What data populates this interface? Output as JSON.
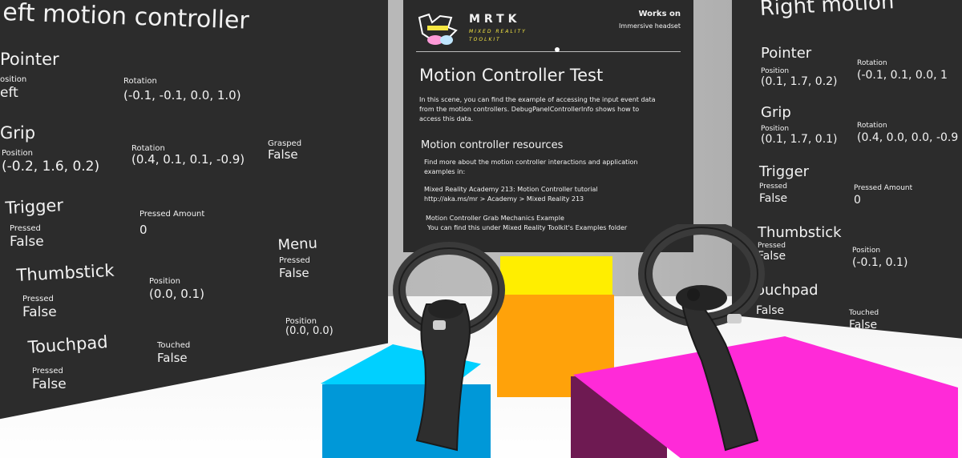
{
  "left_panel": {
    "title": "eft motion controller",
    "pointer": {
      "header": "Pointer",
      "position_label": "osition",
      "position_value": "eft",
      "rotation_label": "Rotation",
      "rotation_value": "(-0.1, -0.1, 0.0, 1.0)"
    },
    "grip": {
      "header": "Grip",
      "position_label": "Position",
      "position_value": "(-0.2, 1.6, 0.2)",
      "rotation_label": "Rotation",
      "rotation_value": "(0.4, 0.1, 0.1, -0.9)",
      "grasped_label": "Grasped",
      "grasped_value": "False"
    },
    "trigger": {
      "header": "Trigger",
      "pressed_label": "Pressed",
      "pressed_value": "False",
      "amount_label": "Pressed Amount",
      "amount_value": "0"
    },
    "menu": {
      "header": "Menu",
      "pressed_label": "Pressed",
      "pressed_value": "False"
    },
    "thumbstick": {
      "header": "Thumbstick",
      "pressed_label": "Pressed",
      "pressed_value": "False",
      "position_label": "Position",
      "position_value": "(0.0, 0.1)"
    },
    "touchpad": {
      "header": "Touchpad",
      "pressed_label": "Pressed",
      "pressed_value": "False",
      "touched_label": "Touched",
      "touched_value": "False",
      "position_label": "Position",
      "position_value": "(0.0, 0.0)"
    }
  },
  "center_panel": {
    "logo": {
      "name": "MRTK",
      "sub1": "MIXED REALITY",
      "sub2": "TOOLKIT"
    },
    "works_on_label": "Works on",
    "works_on_value": "Immersive headset",
    "title": "Motion Controller Test",
    "intro": [
      "In this scene, you can find the example of accessing the input event data",
      "from the motion controllers. DebugPanelControllerInfo shows how to",
      "access this data."
    ],
    "resources_header": "Motion controller resources",
    "resources_intro": [
      "Find more about the motion controller interactions and application",
      "examples in:"
    ],
    "academy": [
      "Mixed Reality Academy 213: Motion Controller tutorial",
      "http://aka.ms/mr > Academy > Mixed Reality 213"
    ],
    "grab": [
      "Motion Controller Grab Mechanics Example",
      "You can find this under Mixed Reality Toolkit's Examples folder"
    ]
  },
  "right_panel": {
    "title": "Right motion",
    "pointer": {
      "header": "Pointer",
      "position_label": "Position",
      "position_value": "(0.1, 1.7, 0.2)",
      "rotation_label": "Rotation",
      "rotation_value": "(-0.1, 0.1, 0.0, 1"
    },
    "grip": {
      "header": "Grip",
      "position_label": "Position",
      "position_value": "(0.1, 1.7, 0.1)",
      "rotation_label": "Rotation",
      "rotation_value": "(0.4, 0.0, 0.0, -0.9"
    },
    "trigger": {
      "header": "Trigger",
      "pressed_label": "Pressed",
      "pressed_value": "False",
      "amount_label": "Pressed Amount",
      "amount_value": "0"
    },
    "thumbstick": {
      "header": "Thumbstick",
      "pressed_label": "Pressed",
      "pressed_value": "False",
      "position_label": "Position",
      "position_value": "(-0.1, 0.1)"
    },
    "touchpad": {
      "header": "ouchpad",
      "pressed_value": "False",
      "touched_label": "Touched",
      "touched_value": "False"
    }
  },
  "scene": {
    "colors": {
      "yellow": "#ffee00",
      "orange": "#ffa20a",
      "cyan": "#00d0ff",
      "blue": "#0098d8",
      "magenta": "#ff2ad8",
      "panel": "#2c2c2c"
    },
    "icons": [
      "mrtk-logo-icon",
      "motion-controller-left-icon",
      "motion-controller-right-icon"
    ]
  }
}
